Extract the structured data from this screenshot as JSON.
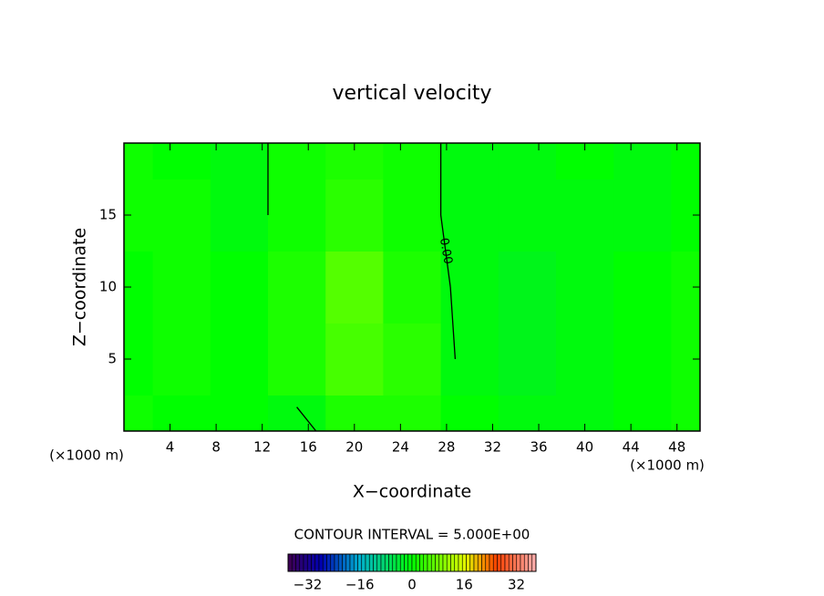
{
  "chart_data": {
    "type": "contour",
    "title": "vertical velocity",
    "x_label": "X−coordinate",
    "y_label": "Z−coordinate",
    "x_unit": "(×1000 m)",
    "footer": "CONTOUR INTERVAL = 5.000E+00",
    "xlim": [
      0,
      50
    ],
    "ylim": [
      0,
      20
    ],
    "xticks": [
      4,
      8,
      12,
      16,
      20,
      24,
      28,
      32,
      36,
      40,
      44,
      48
    ],
    "yticks": [
      5,
      10,
      15
    ],
    "x": [
      0,
      5,
      10,
      15,
      20,
      25,
      30,
      35,
      40,
      45,
      50
    ],
    "y": [
      0,
      5,
      10,
      15,
      20
    ],
    "z": [
      [
        1,
        0,
        0,
        -1,
        2,
        2,
        0,
        -1,
        -1,
        0,
        1
      ],
      [
        0,
        1,
        0,
        2,
        5,
        3,
        -1,
        -2,
        -1,
        0,
        1
      ],
      [
        0,
        1,
        0,
        2,
        6,
        2,
        -1,
        -2,
        -1,
        0,
        1
      ],
      [
        1,
        1,
        -1,
        1,
        3,
        1,
        -1,
        -1,
        -1,
        -1,
        0
      ],
      [
        1,
        0,
        -1,
        1,
        2,
        1,
        -1,
        -1,
        0,
        -1,
        0
      ]
    ],
    "contour_levels": [
      {
        "value": 0,
        "label": "0.00"
      }
    ],
    "colormap": [
      {
        "value": -38,
        "color": "#400050"
      },
      {
        "value": -28,
        "color": "#0000b0"
      },
      {
        "value": -16,
        "color": "#00b0d0"
      },
      {
        "value": 0,
        "color": "#00ff00"
      },
      {
        "value": 16,
        "color": "#e0ff00"
      },
      {
        "value": 26,
        "color": "#ff4000"
      },
      {
        "value": 38,
        "color": "#ffb0b0"
      }
    ],
    "clim": [
      -38,
      38
    ],
    "colorbar_ticks": [
      {
        "value": -32,
        "label": "−32"
      },
      {
        "value": -16,
        "label": "−16"
      },
      0,
      16,
      32
    ]
  }
}
